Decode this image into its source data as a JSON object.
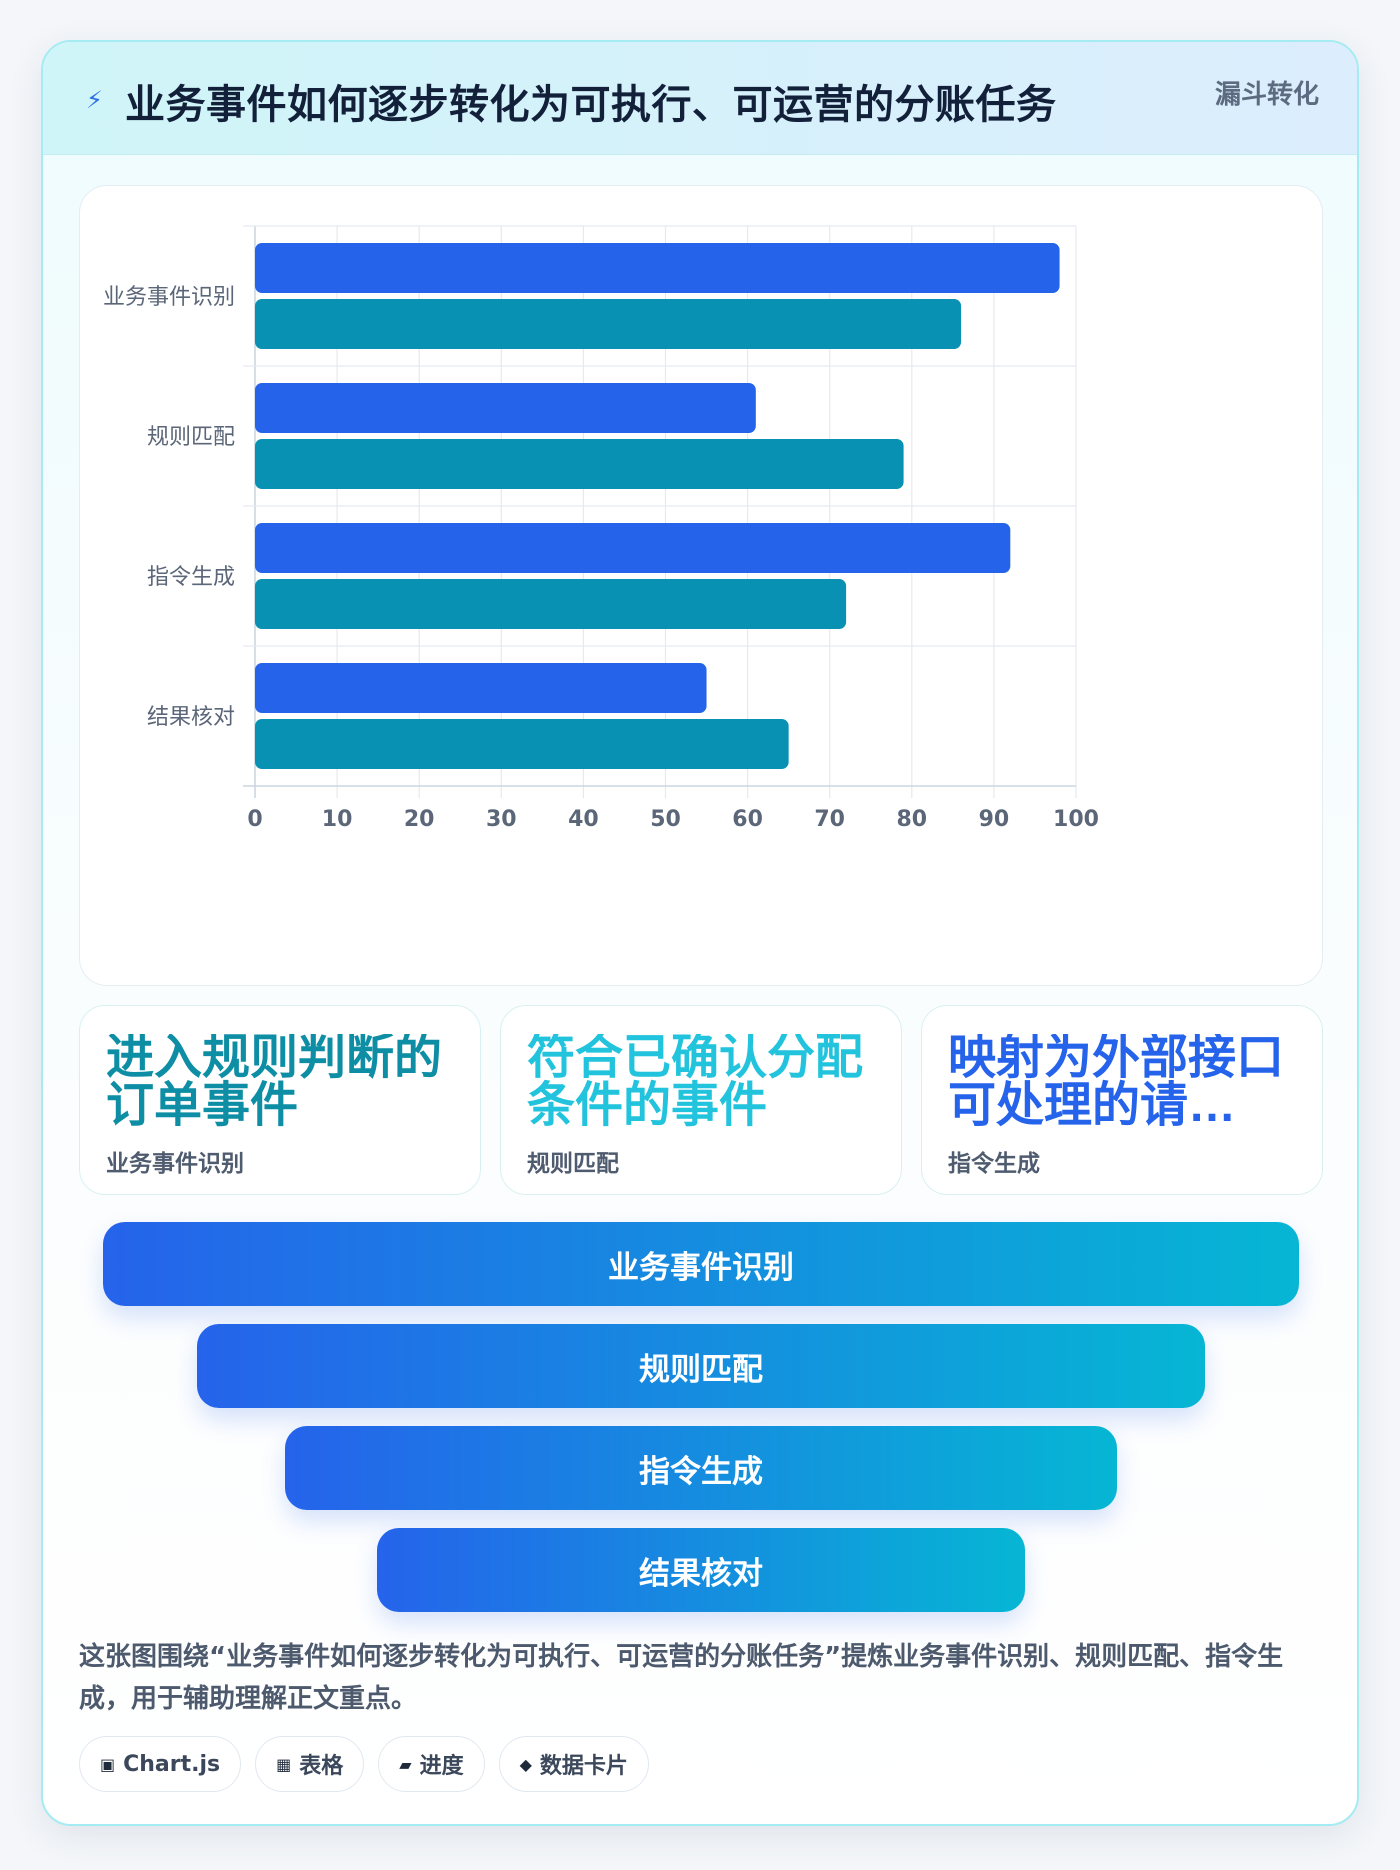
{
  "header": {
    "icon": "lightning-icon",
    "title": "业务事件如何逐步转化为可执行、可运营的分账任务",
    "tag": "漏斗转化"
  },
  "chart_data": {
    "type": "bar",
    "orientation": "horizontal",
    "categories": [
      "业务事件识别",
      "规则匹配",
      "指令生成",
      "结果核对"
    ],
    "series": [
      {
        "color": "#2563eb",
        "values": [
          98,
          61,
          92,
          55
        ]
      },
      {
        "color": "#0891b2",
        "values": [
          86,
          79,
          72,
          65
        ]
      }
    ],
    "xlim": [
      0,
      100
    ],
    "xticks": [
      "0",
      "10",
      "20",
      "30",
      "40",
      "50",
      "60",
      "70",
      "80",
      "90",
      "100"
    ],
    "grid": true,
    "legend": "none"
  },
  "stats": [
    {
      "value": "进入规则判断的订单事件",
      "label": "业务事件识别",
      "color": "#0e8ea5"
    },
    {
      "value": "符合已确认分配条件的事件",
      "label": "规则匹配",
      "color": "#22c3dc"
    },
    {
      "value": "映射为外部接口可处理的请…",
      "label": "指令生成",
      "color": "#2563eb"
    }
  ],
  "funnel": [
    {
      "label": "业务事件识别"
    },
    {
      "label": "规则匹配"
    },
    {
      "label": "指令生成"
    },
    {
      "label": "结果核对"
    }
  ],
  "caption": "这张图围绕“业务事件如何逐步转化为可执行、可运营的分账任务”提炼业务事件识别、规则匹配、指令生成，用于辅助理解正文重点。",
  "chips": [
    {
      "icon": "chart-icon",
      "glyph": "▣",
      "label": "Chart.js"
    },
    {
      "icon": "table-icon",
      "glyph": "▦",
      "label": "表格"
    },
    {
      "icon": "progress-icon",
      "glyph": "▰",
      "label": "进度"
    },
    {
      "icon": "diamond-icon",
      "glyph": "◆",
      "label": "数据卡片"
    }
  ]
}
